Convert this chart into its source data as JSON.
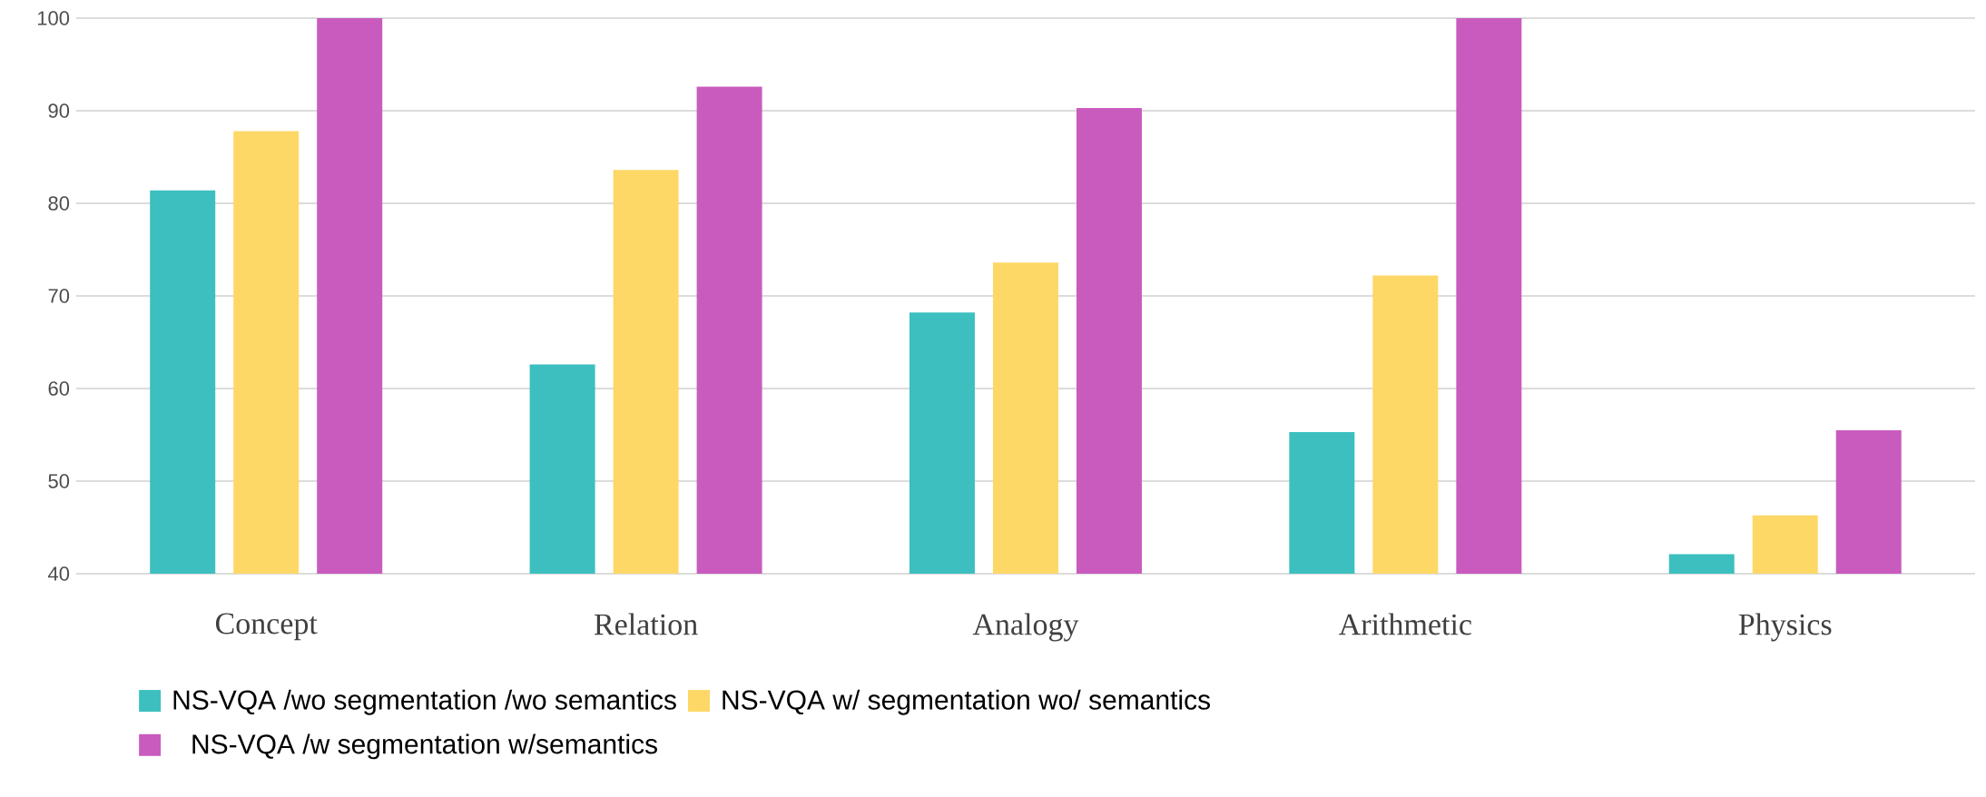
{
  "chart_data": {
    "type": "bar",
    "categories": [
      "Concept",
      "Relation",
      "Analogy",
      "Arithmetic",
      "Physics"
    ],
    "series": [
      {
        "name": "NS-VQA /wo segmentation /wo semantics",
        "color": "#3dbfbf",
        "values": [
          81.4,
          62.6,
          68.2,
          55.3,
          42.1
        ]
      },
      {
        "name": "NS-VQA w/ segmentation wo/ semantics",
        "color": "#fdd867",
        "values": [
          87.8,
          83.6,
          73.6,
          72.2,
          46.3
        ]
      },
      {
        "name": "NS-VQA /w segmentation w/semantics",
        "color": "#c95bbf",
        "values": [
          100,
          92.6,
          90.3,
          100,
          55.5
        ]
      }
    ],
    "ylim": [
      40,
      100
    ],
    "yticks": [
      40,
      50,
      60,
      70,
      80,
      90,
      100
    ],
    "grid": "y",
    "legend": "bottom"
  }
}
